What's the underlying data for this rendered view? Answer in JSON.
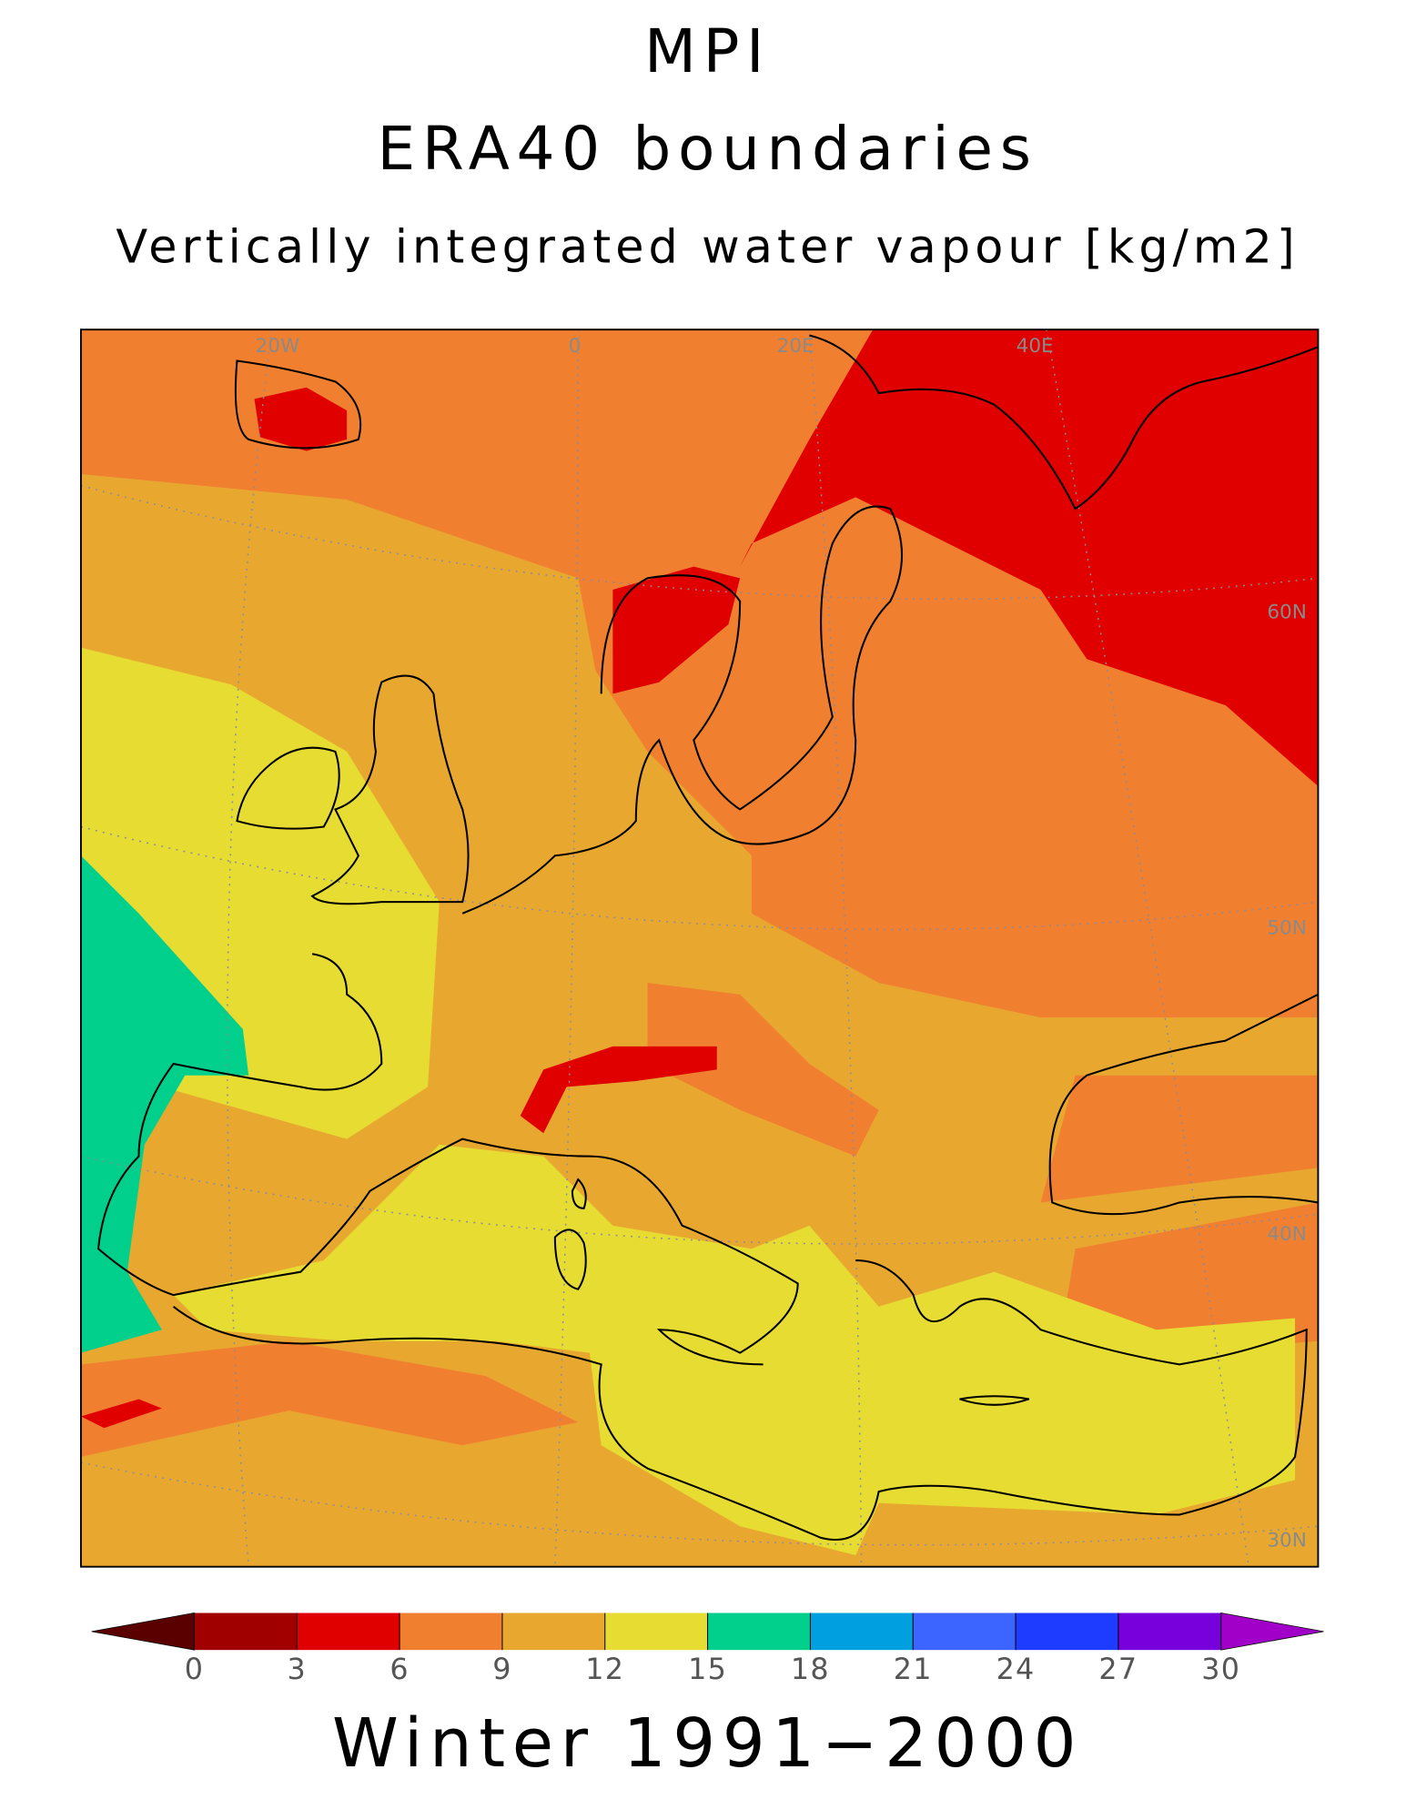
{
  "header": {
    "model": "MPI",
    "boundaries": "ERA40 boundaries",
    "variable": "Vertically integrated water vapour [kg/m2]"
  },
  "map": {
    "lon_labels": [
      "20W",
      "0",
      "20E",
      "40E"
    ],
    "lat_labels": [
      "60N",
      "50N",
      "40N",
      "30N"
    ]
  },
  "colorbar": {
    "ticks": [
      0,
      3,
      6,
      9,
      12,
      15,
      18,
      21,
      24,
      27,
      30
    ],
    "colors": [
      "#5a0000",
      "#a00000",
      "#e00000",
      "#f08030",
      "#e8a830",
      "#e6dc32",
      "#00d08c",
      "#00a0e0",
      "#3c64ff",
      "#1e3cff",
      "#7800dc",
      "#a000c8"
    ]
  },
  "footer": "Winter 1991−2000"
}
